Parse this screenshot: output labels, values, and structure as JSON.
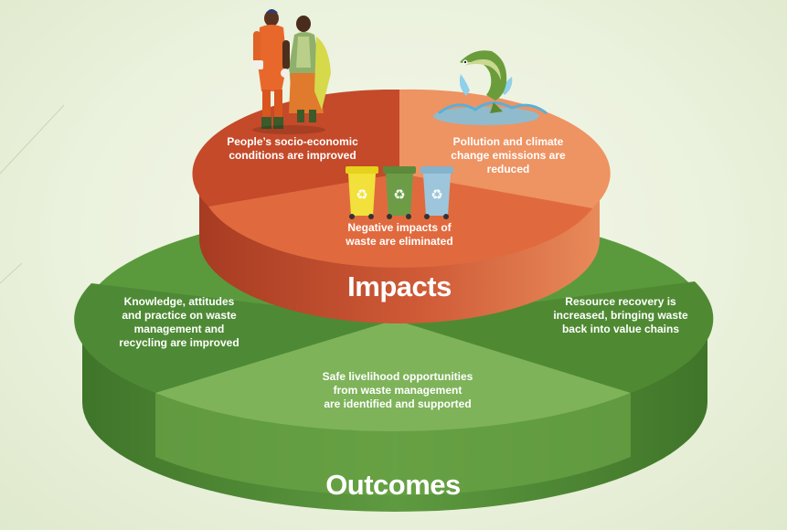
{
  "outer_tier": {
    "title": "Outcomes",
    "segments": {
      "left": "Knowledge, attitudes\nand practice on waste\nmanagement and\nrecycling are improved",
      "front": "Safe livelihood opportunities\nfrom waste management\nare identified and supported",
      "right": "Resource recovery is\nincreased, bringing waste\nback into value chains"
    }
  },
  "inner_tier": {
    "title": "Impacts",
    "segments": {
      "left": "People’s socio-economic\nconditions are improved",
      "right": "Pollution and climate\nchange emissions are\nreduced",
      "front": "Negative impacts of\nwaste are eliminated"
    }
  },
  "colors": {
    "green_dark": "#4e8a35",
    "green_mid": "#5f9a3f",
    "green_light": "#7eb35a",
    "red_dark": "#c44a2a",
    "red_mid": "#d9603a",
    "orange_light": "#ee9362"
  },
  "icons": [
    "waste-worker-figures-icon",
    "recycling-bins-icon",
    "jumping-fish-icon"
  ]
}
